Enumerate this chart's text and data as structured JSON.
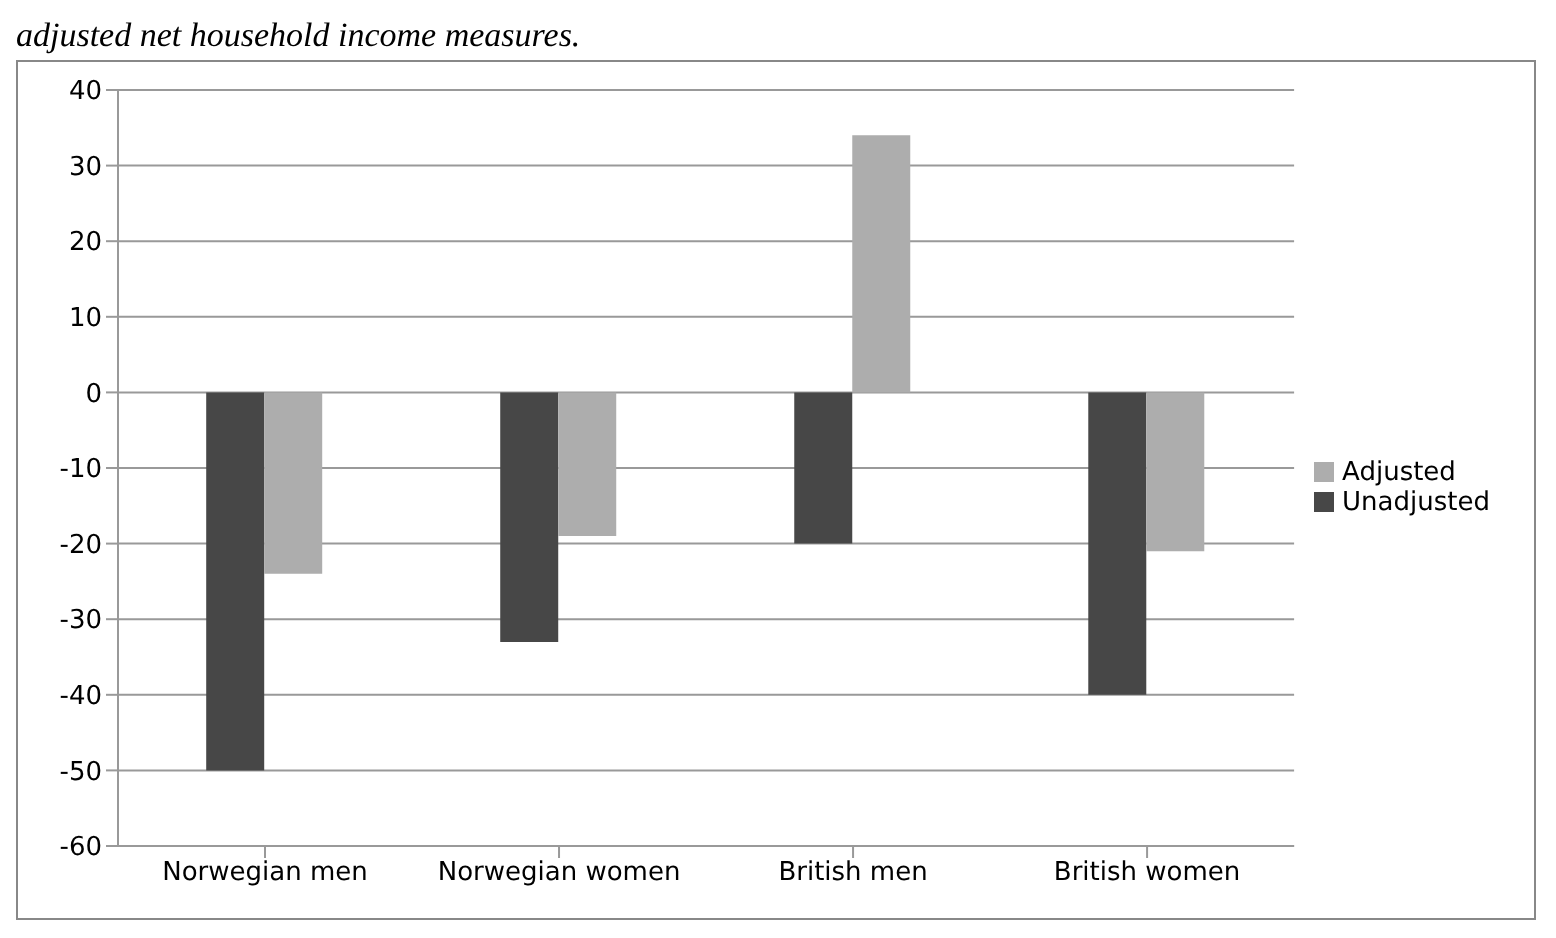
{
  "chart_data": {
    "type": "bar",
    "title": "adjusted net household income measures.",
    "categories": [
      "Norwegian men",
      "Norwegian women",
      "British men",
      "British women"
    ],
    "series": [
      {
        "name": "Unadjusted",
        "color": "#474747",
        "values": [
          -50,
          -33,
          -20,
          -40
        ]
      },
      {
        "name": "Adjusted",
        "color": "#adadad",
        "values": [
          -24,
          -19,
          34,
          -21
        ]
      }
    ],
    "ylim": [
      -60,
      40
    ],
    "yticks": [
      -60,
      -50,
      -40,
      -30,
      -20,
      -10,
      0,
      10,
      20,
      30,
      40
    ],
    "grid": "y",
    "legend": "right"
  }
}
